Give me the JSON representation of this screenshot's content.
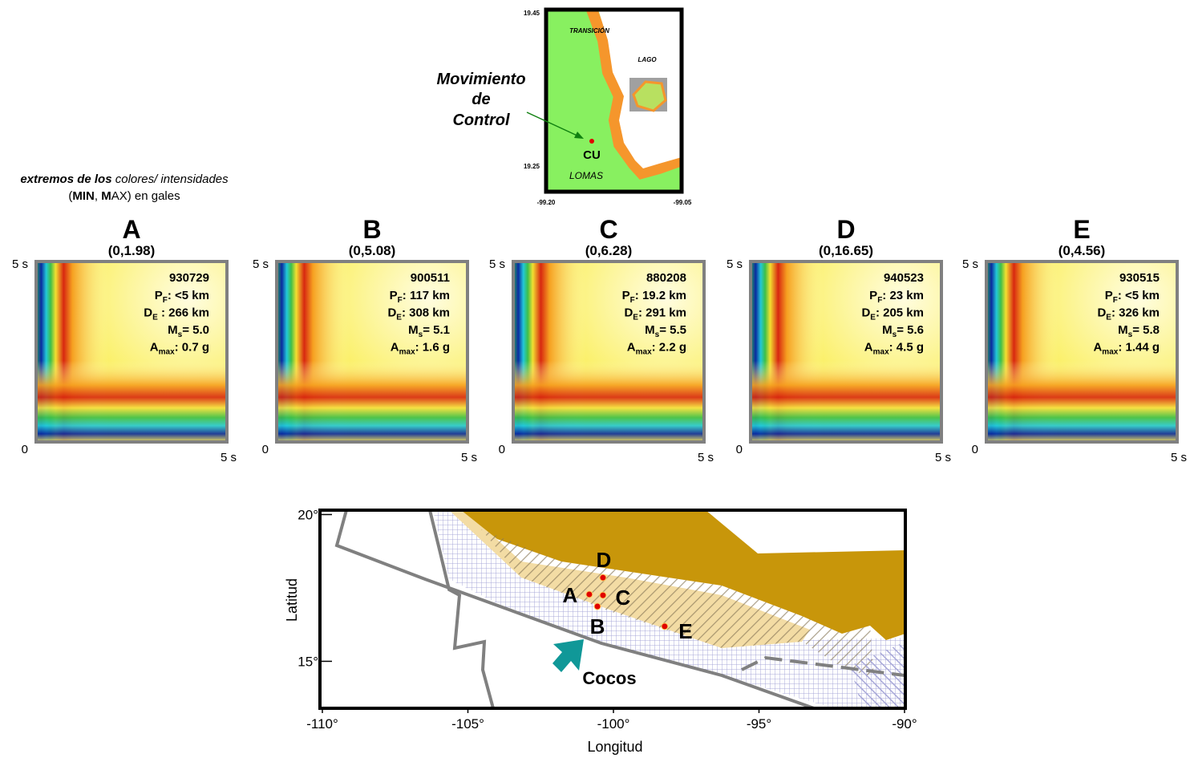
{
  "inset": {
    "caption": [
      "Movimiento",
      "de",
      "Control"
    ],
    "zones": {
      "transition": "TRANSICIÓN",
      "lake": "LAGO",
      "hills": "LOMAS"
    },
    "station": "CU",
    "lat_labels": [
      "19.45",
      "19.25"
    ],
    "lon_labels": [
      "-99.20",
      "-99.05"
    ]
  },
  "legend": {
    "line1": [
      "extremos de los",
      " colores/ intensidades"
    ],
    "line2": [
      "(",
      "MIN",
      ", ",
      "M",
      "AX) en gales"
    ]
  },
  "panels": [
    {
      "letter": "A",
      "range": "(0,1.98)",
      "y_top": "5 s",
      "origin": "0",
      "x_end": "5 s",
      "id": "930729",
      "lines": [
        {
          "m": "P",
          "s": "F",
          "t": ": <5 km"
        },
        {
          "m": "D",
          "s": "E",
          "t": " : 266 km"
        },
        {
          "m": "M",
          "s": "s",
          "t": "= 5.0"
        },
        {
          "m": "A",
          "s": "max",
          "t": ": 0.7 g"
        }
      ]
    },
    {
      "letter": "B",
      "range": "(0,5.08)",
      "y_top": "5 s",
      "origin": "0",
      "x_end": "5 s",
      "id": "900511",
      "lines": [
        {
          "m": "P",
          "s": "F",
          "t": ": 117 km"
        },
        {
          "m": "D",
          "s": "E",
          "t": ": 308 km"
        },
        {
          "m": "M",
          "s": "s",
          "t": "= 5.1"
        },
        {
          "m": "A",
          "s": "max",
          "t": ": 1.6 g"
        }
      ]
    },
    {
      "letter": "C",
      "range": "(0,6.28)",
      "y_top": "5 s",
      "origin": "0",
      "x_end": "5 s",
      "id": "880208",
      "lines": [
        {
          "m": "P",
          "s": "F",
          "t": ": 19.2 km"
        },
        {
          "m": "D",
          "s": "E",
          "t": ": 291 km"
        },
        {
          "m": "M",
          "s": "s",
          "t": "= 5.5"
        },
        {
          "m": "A",
          "s": "max",
          "t": ": 2.2 g"
        }
      ]
    },
    {
      "letter": "D",
      "range": "(0,16.65)",
      "y_top": "5 s",
      "origin": "0",
      "x_end": "5 s",
      "id": "940523",
      "lines": [
        {
          "m": "P",
          "s": "F",
          "t": ": 23 km"
        },
        {
          "m": "D",
          "s": "E",
          "t": ": 205 km"
        },
        {
          "m": "M",
          "s": "s",
          "t": "= 5.6"
        },
        {
          "m": "A",
          "s": "max",
          "t": ": 4.5 g"
        }
      ]
    },
    {
      "letter": "E",
      "range": "(0,4.56)",
      "y_top": "5 s",
      "origin": "0",
      "x_end": "5 s",
      "id": "930515",
      "lines": [
        {
          "m": "P",
          "s": "F",
          "t": ": <5 km"
        },
        {
          "m": "D",
          "s": "E",
          "t": ": 326 km"
        },
        {
          "m": "M",
          "s": "s",
          "t": "= 5.8"
        },
        {
          "m": "A",
          "s": "max",
          "t": ": 1.44 g"
        }
      ]
    }
  ],
  "map": {
    "xlabel": "Longitud",
    "ylabel": "Latitud",
    "xlim": [
      -110,
      -90
    ],
    "ylim": [
      13.4,
      20.15
    ],
    "xticks": [
      {
        "value": -110,
        "label": "-110°"
      },
      {
        "value": -105,
        "label": "-105°"
      },
      {
        "value": -100,
        "label": "-100°"
      },
      {
        "value": -95,
        "label": "-95°"
      },
      {
        "value": -90,
        "label": "-90°"
      }
    ],
    "yticks": [
      {
        "value": 20,
        "label": "20°"
      },
      {
        "value": 15,
        "label": "15°"
      }
    ],
    "plate": "Cocos",
    "events": [
      {
        "label": "A",
        "lon": -100.83,
        "lat": 17.28
      },
      {
        "label": "B",
        "lon": -100.55,
        "lat": 16.87
      },
      {
        "label": "C",
        "lon": -100.36,
        "lat": 17.25
      },
      {
        "label": "D",
        "lon": -100.36,
        "lat": 17.85
      },
      {
        "label": "E",
        "lon": -98.24,
        "lat": 16.19
      }
    ]
  }
}
